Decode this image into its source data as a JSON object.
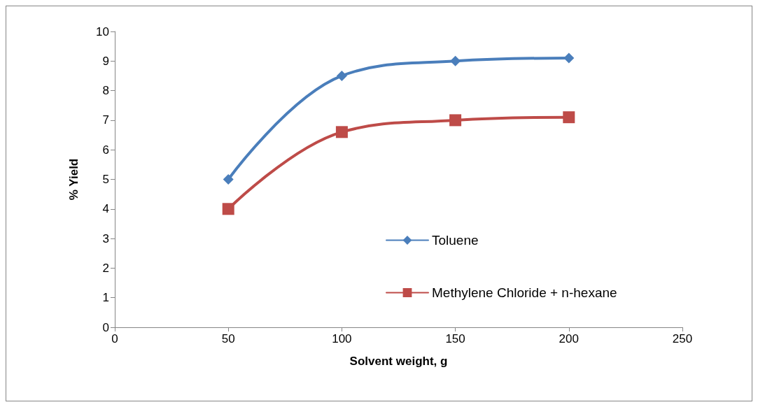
{
  "chart_data": {
    "type": "line",
    "xlabel": "Solvent weight, g",
    "ylabel": "% Yield",
    "x": [
      50,
      100,
      150,
      200
    ],
    "series": [
      {
        "name": "Toluene",
        "color": "#4a7ebb",
        "marker": "diamond",
        "values": [
          5,
          8.5,
          9,
          9.1
        ]
      },
      {
        "name": "Methylene Chloride + n-hexane",
        "color": "#be4b48",
        "marker": "square",
        "values": [
          4,
          6.6,
          7,
          7.1
        ]
      }
    ],
    "xlim": [
      0,
      250
    ],
    "xticks": [
      0,
      50,
      100,
      150,
      200,
      250
    ],
    "ylim": [
      0,
      10
    ],
    "yticks": [
      0,
      1,
      2,
      3,
      4,
      5,
      6,
      7,
      8,
      9,
      10
    ],
    "grid": false,
    "legend": "right"
  }
}
